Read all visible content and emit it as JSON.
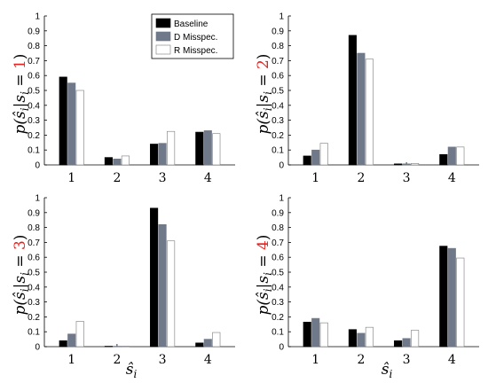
{
  "chart_data": [
    {
      "type": "bar",
      "categories": [
        "1",
        "2",
        "3",
        "4"
      ],
      "ylim": [
        0,
        1
      ],
      "yticks": [
        "0",
        "0.1",
        "0.2",
        "0.3",
        "0.4",
        "0.5",
        "0.6",
        "0.7",
        "0.8",
        "0.9",
        "1"
      ],
      "ylabel": {
        "pre": "p(ŝ",
        "sub1": "i",
        "mid": "|s",
        "sub2": "i",
        "eq": " = ",
        "num": "1",
        "post": ")"
      },
      "xlabel": "",
      "legend": "top-right",
      "series": [
        {
          "name": "Baseline",
          "values": [
            0.59,
            0.05,
            0.14,
            0.22
          ]
        },
        {
          "name": "D Misspec.",
          "values": [
            0.55,
            0.04,
            0.145,
            0.23
          ]
        },
        {
          "name": "R Misspec.",
          "values": [
            0.5,
            0.06,
            0.225,
            0.21
          ]
        }
      ]
    },
    {
      "type": "bar",
      "categories": [
        "1",
        "2",
        "3",
        "4"
      ],
      "ylim": [
        0,
        1
      ],
      "yticks": [
        "0",
        "0.1",
        "0.2",
        "0.3",
        "0.4",
        "0.5",
        "0.6",
        "0.7",
        "0.8",
        "0.9",
        "1"
      ],
      "ylabel": {
        "pre": "p(ŝ",
        "sub1": "i",
        "mid": "|s",
        "sub2": "i",
        "eq": " = ",
        "num": "2",
        "post": ")"
      },
      "xlabel": "",
      "series": [
        {
          "name": "Baseline",
          "values": [
            0.06,
            0.87,
            0.007,
            0.07
          ]
        },
        {
          "name": "D Misspec.",
          "values": [
            0.1,
            0.75,
            0.007,
            0.12
          ]
        },
        {
          "name": "R Misspec.",
          "values": [
            0.145,
            0.71,
            0.01,
            0.12
          ]
        }
      ]
    },
    {
      "type": "bar",
      "categories": [
        "1",
        "2",
        "3",
        "4"
      ],
      "ylim": [
        0,
        1
      ],
      "yticks": [
        "0",
        "0.1",
        "0.2",
        "0.3",
        "0.4",
        "0.5",
        "0.6",
        "0.7",
        "0.8",
        "0.9",
        "1"
      ],
      "ylabel": {
        "pre": "p(ŝ",
        "sub1": "i",
        "mid": "|s",
        "sub2": "i",
        "eq": " = ",
        "num": "3",
        "post": ")"
      },
      "xlabel": {
        "base": "ŝ",
        "sub": "i"
      },
      "series": [
        {
          "name": "Baseline",
          "values": [
            0.04,
            0.003,
            0.93,
            0.025
          ]
        },
        {
          "name": "D Misspec.",
          "values": [
            0.085,
            0.003,
            0.82,
            0.05
          ]
        },
        {
          "name": "R Misspec.",
          "values": [
            0.17,
            0.003,
            0.71,
            0.095
          ]
        }
      ]
    },
    {
      "type": "bar",
      "categories": [
        "1",
        "2",
        "3",
        "4"
      ],
      "ylim": [
        0,
        1
      ],
      "yticks": [
        "0",
        "0.1",
        "0.2",
        "0.3",
        "0.4",
        "0.5",
        "0.6",
        "0.7",
        "0.8",
        "0.9",
        "1"
      ],
      "ylabel": {
        "pre": "p(ŝ",
        "sub1": "i",
        "mid": "|s",
        "sub2": "i",
        "eq": " = ",
        "num": "4",
        "post": ")"
      },
      "xlabel": {
        "base": "ŝ",
        "sub": "i"
      },
      "series": [
        {
          "name": "Baseline",
          "values": [
            0.165,
            0.115,
            0.04,
            0.675
          ]
        },
        {
          "name": "D Misspec.",
          "values": [
            0.19,
            0.09,
            0.055,
            0.66
          ]
        },
        {
          "name": "R Misspec.",
          "values": [
            0.16,
            0.13,
            0.11,
            0.595
          ]
        }
      ]
    }
  ],
  "colors": {
    "series": [
      "#000000",
      "#6f7989",
      "#ffffff"
    ],
    "accent": "#e8201e"
  }
}
